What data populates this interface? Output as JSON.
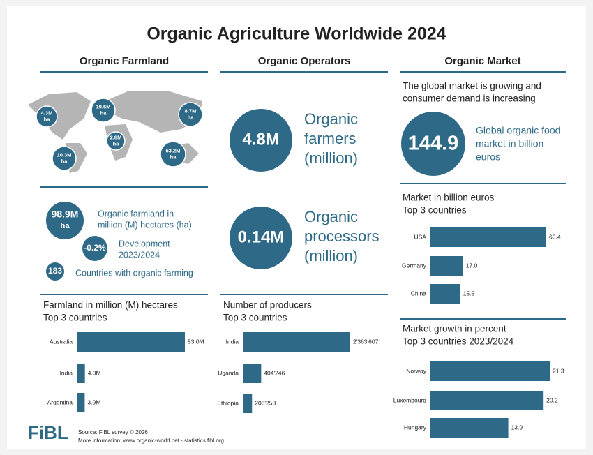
{
  "title": "Organic Agriculture Worldwide 2024",
  "columns": [
    "Organic Farmland",
    "Organic Operators",
    "Organic Market"
  ],
  "farmland": {
    "map_bubbles": [
      [
        "4.3M",
        "ha"
      ],
      [
        "19.6M",
        "ha"
      ],
      [
        "8.7M",
        "ha"
      ],
      [
        "2.8M",
        "ha"
      ],
      [
        "10.3M",
        "ha"
      ],
      [
        "53.2M",
        "ha"
      ]
    ],
    "stats": [
      {
        "circle": [
          "98.9M",
          "ha"
        ],
        "text": [
          "Organic farmland in",
          "million (M) hectares (ha)"
        ]
      },
      {
        "circle": [
          "-0.2%"
        ],
        "text": [
          "Development",
          "2023/2024"
        ]
      },
      {
        "circle": [
          "183"
        ],
        "text": [
          "Countries with organic farming"
        ]
      }
    ]
  },
  "operators": [
    {
      "circle": "4.8M",
      "text": [
        "Organic",
        "farmers",
        "(million)"
      ]
    },
    {
      "circle": "0.14M",
      "text": [
        "Organic",
        "processors",
        "(million)"
      ]
    }
  ],
  "market": {
    "intro": [
      "The global market is growing and",
      "consumer demand is increasing"
    ],
    "circle": "144.9",
    "text": [
      "Global organic food",
      "market in billion",
      "euros"
    ]
  },
  "chart_data": [
    {
      "type": "bar",
      "orientation": "horizontal",
      "title": "Farmland in million (M) hectares",
      "subtitle": "Top 3 countries",
      "categories": [
        "Australia",
        "India",
        "Argentina"
      ],
      "values": [
        53.0,
        4.0,
        3.9
      ],
      "value_labels": [
        "53.0M",
        "4.0M",
        "3.9M"
      ],
      "color": "#2e6a87"
    },
    {
      "type": "bar",
      "orientation": "horizontal",
      "title": "Number of producers",
      "subtitle": "Top 3 countries",
      "categories": [
        "India",
        "Uganda",
        "Ethiopia"
      ],
      "values": [
        2363607,
        404246,
        203258
      ],
      "value_labels": [
        "2'363'607",
        "404'246",
        "203'258"
      ],
      "color": "#2e6a87"
    },
    {
      "type": "bar",
      "orientation": "horizontal",
      "title": "Market in billion euros",
      "subtitle": "Top 3 countries",
      "categories": [
        "USA",
        "Germany",
        "China"
      ],
      "values": [
        60.4,
        17.0,
        15.5
      ],
      "value_labels": [
        "60.4",
        "17.0",
        "15.5"
      ],
      "color": "#2e6a87"
    },
    {
      "type": "bar",
      "orientation": "horizontal",
      "title": "Market growth in percent",
      "subtitle": "Top 3 countries 2023/2024",
      "categories": [
        "Norway",
        "Luxembourg",
        "Hungary"
      ],
      "values": [
        21.3,
        20.2,
        13.9
      ],
      "color": "#2e6a87"
    }
  ],
  "footer": {
    "logo": "FiBL",
    "source": "Source: FiBL survey © 2026",
    "more": "More information: www.organic-world.net - statistics.fibl.org"
  }
}
